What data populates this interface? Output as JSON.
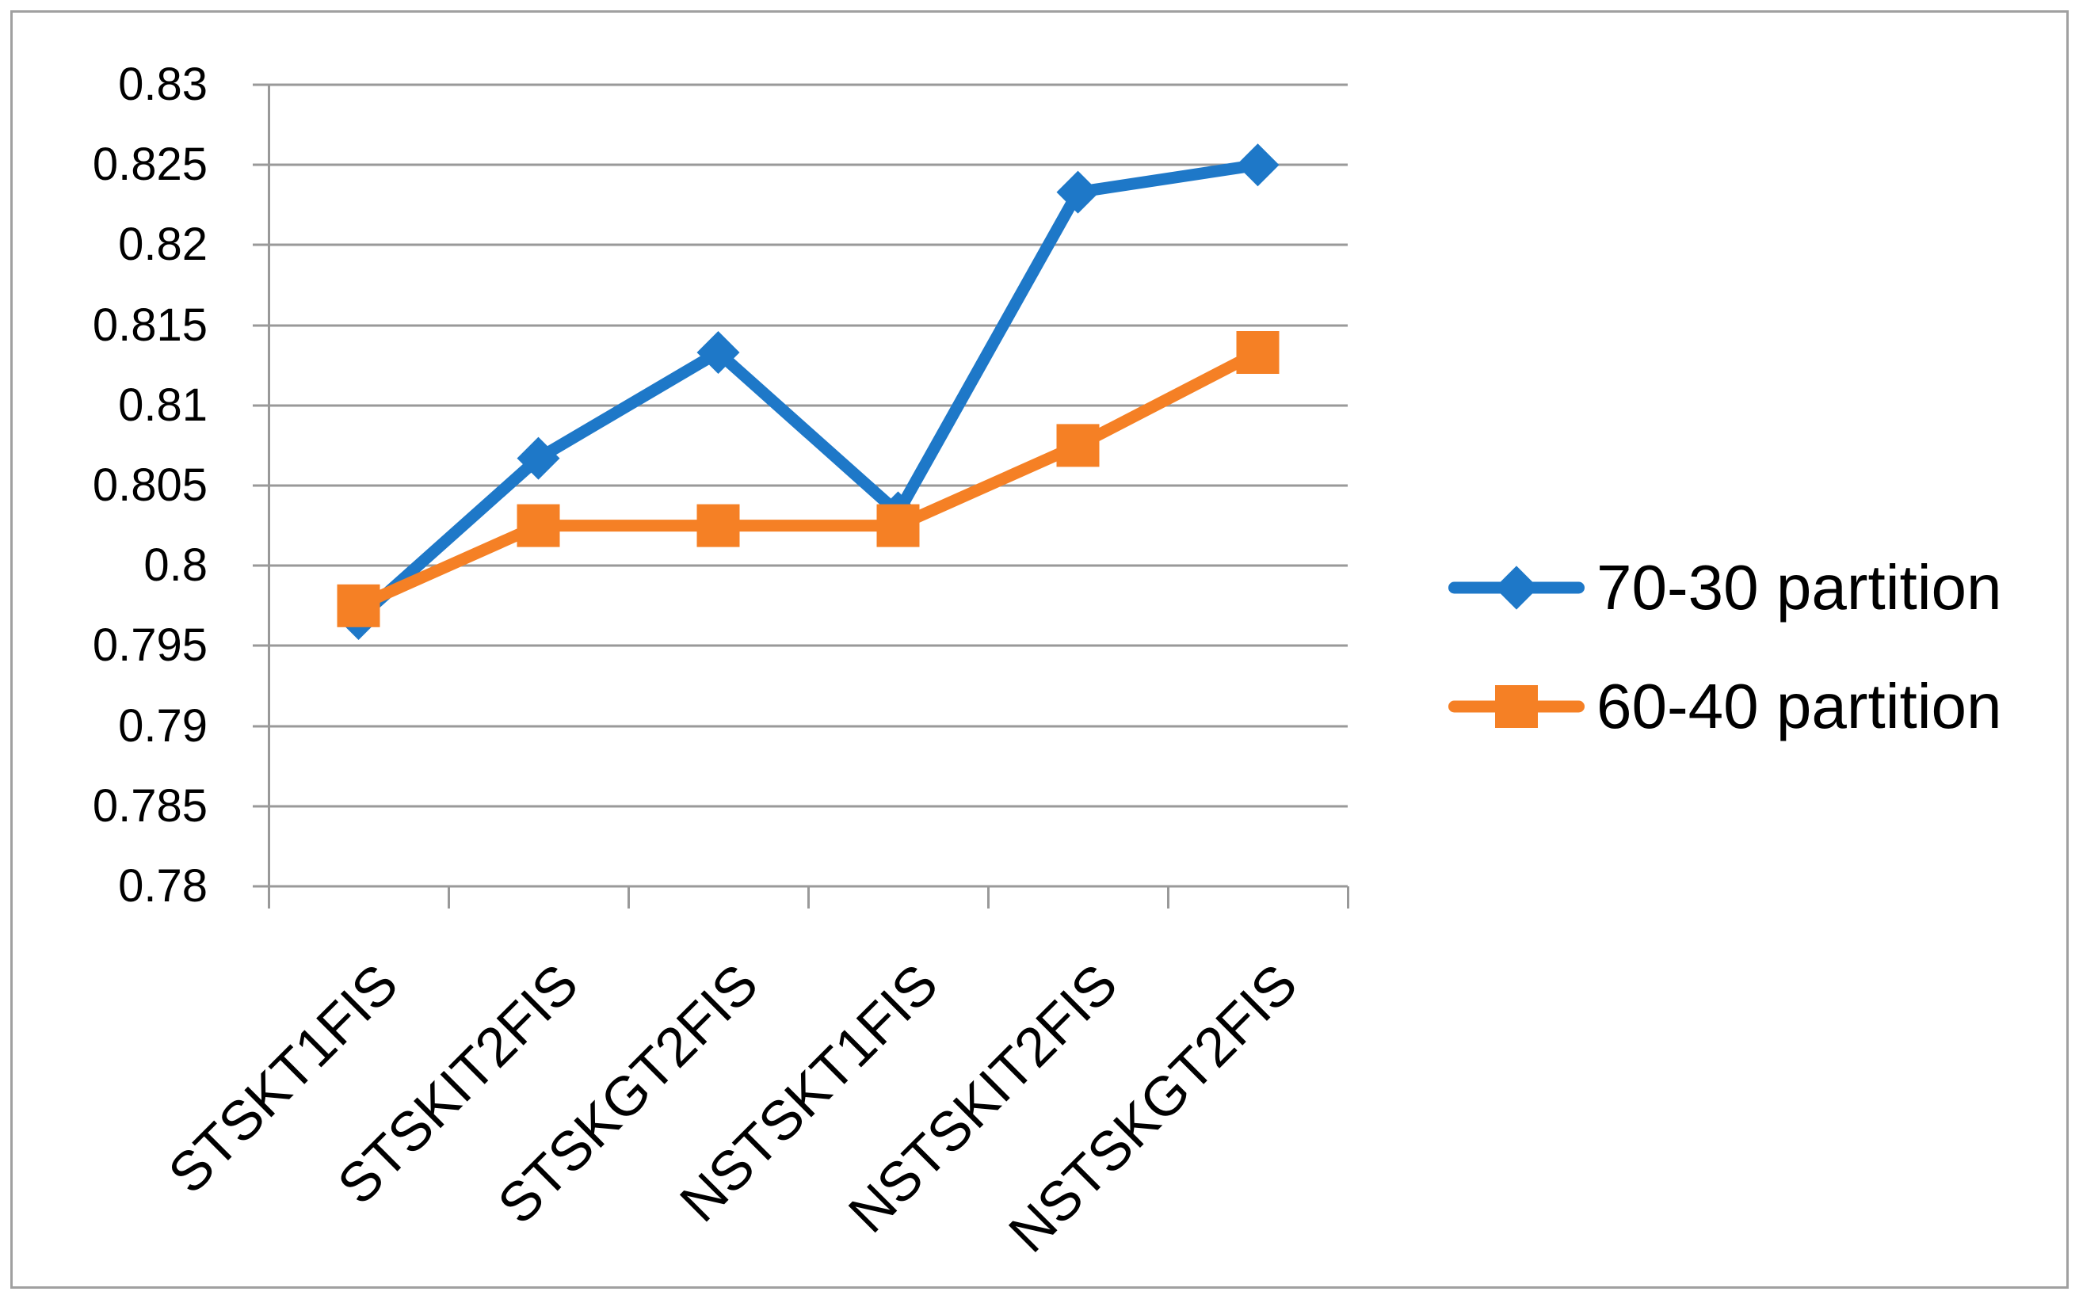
{
  "chart_data": {
    "type": "line",
    "title": "",
    "xlabel": "",
    "ylabel": "",
    "categories": [
      "STSKT1FIS",
      "STSKIT2FIS",
      "STSKGT2FIS",
      "NSTSKT1FIS",
      "NSTSKIT2FIS",
      "NSTSKGT2FIS"
    ],
    "series": [
      {
        "name": "70-30 partition",
        "marker": "diamond",
        "color": "#1E78C8",
        "values": [
          0.7967,
          0.8067,
          0.8133,
          0.8033,
          0.8233,
          0.825
        ]
      },
      {
        "name": "60-40 partition",
        "marker": "square",
        "color": "#F58025",
        "values": [
          0.7975,
          0.8025,
          0.8025,
          0.8025,
          0.8075,
          0.8133
        ]
      }
    ],
    "ylim": [
      0.78,
      0.83
    ],
    "ytick_step": 0.005,
    "ytick_labels": [
      "0.83",
      "0.825",
      "0.82",
      "0.815",
      "0.81",
      "0.805",
      "0.8",
      "0.795",
      "0.79",
      "0.785",
      "0.78"
    ],
    "grid": true,
    "legend_position": "right"
  },
  "styles": {
    "grid_color": "#999999",
    "axis_text_color": "#000000",
    "background_color": "#FFFFFF",
    "border_color": "#A0A0A0"
  }
}
